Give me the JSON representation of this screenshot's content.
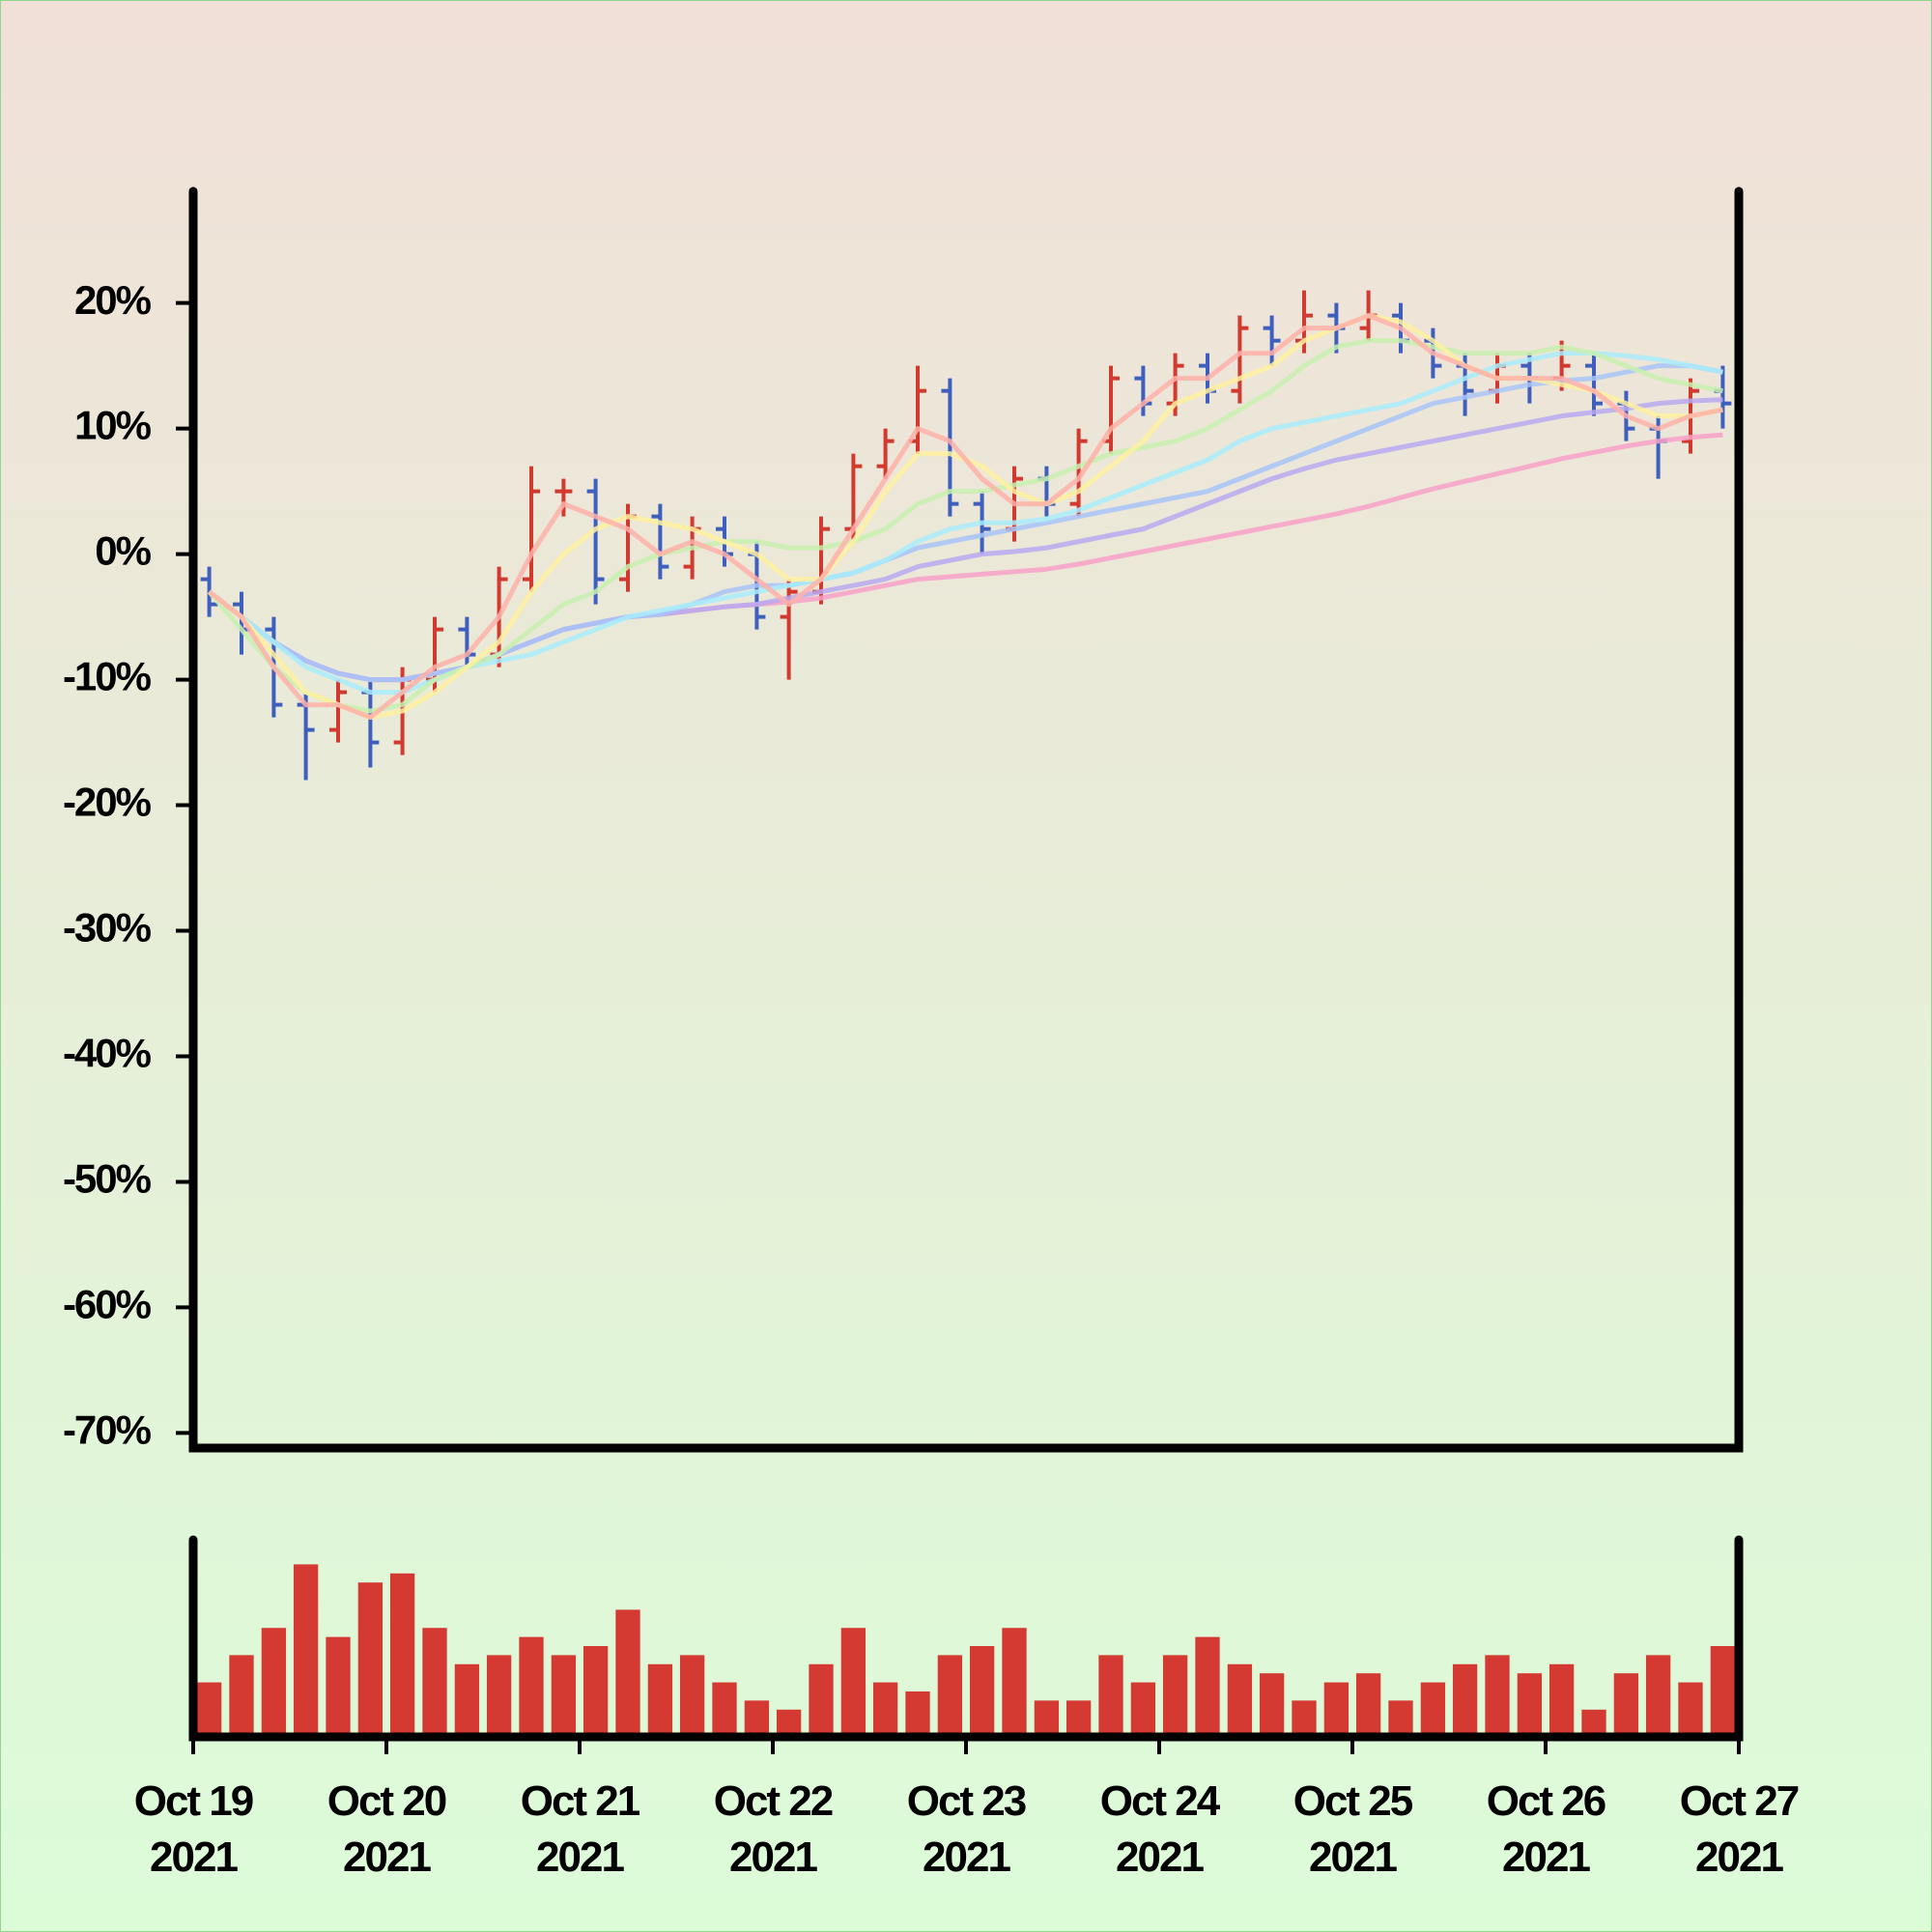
{
  "chart_data": {
    "type": "ohlc",
    "x": [
      0.083,
      0.25,
      0.417,
      0.583,
      0.75,
      0.917,
      1.083,
      1.25,
      1.417,
      1.583,
      1.75,
      1.917,
      2.083,
      2.25,
      2.417,
      2.583,
      2.75,
      2.917,
      3.083,
      3.25,
      3.417,
      3.583,
      3.75,
      3.917,
      4.083,
      4.25,
      4.417,
      4.583,
      4.75,
      4.917,
      5.083,
      5.25,
      5.417,
      5.583,
      5.75,
      5.917,
      6.083,
      6.25,
      6.417,
      6.583,
      6.75,
      6.917,
      7.083,
      7.25,
      7.417,
      7.583,
      7.75,
      7.917
    ],
    "open": [
      -2,
      -4,
      -6,
      -12,
      -14,
      -11,
      -15,
      -10,
      -6,
      -8,
      -2,
      5,
      5,
      -2,
      3,
      -1,
      2,
      0,
      -5,
      -3,
      2,
      7,
      9,
      13,
      4,
      2,
      6,
      4,
      9,
      14,
      12,
      15,
      13,
      18,
      17,
      19,
      18,
      19,
      17,
      15,
      13,
      15,
      14,
      15,
      12,
      10,
      9,
      13
    ],
    "high": [
      -1,
      -3,
      -5,
      -11,
      -10,
      -10,
      -9,
      -5,
      -5,
      -1,
      7,
      6,
      6,
      4,
      4,
      3,
      3,
      1,
      -2,
      3,
      8,
      10,
      15,
      14,
      5,
      7,
      7,
      10,
      15,
      15,
      16,
      16,
      19,
      19,
      21,
      20,
      21,
      20,
      18,
      16,
      16,
      16,
      17,
      16,
      13,
      11,
      14,
      15
    ],
    "low": [
      -5,
      -8,
      -13,
      -18,
      -15,
      -17,
      -16,
      -11,
      -9,
      -9,
      -3,
      3,
      -4,
      -3,
      -2,
      -2,
      -1,
      -6,
      -10,
      -4,
      1,
      6,
      8,
      3,
      0,
      1,
      3,
      3,
      8,
      11,
      11,
      12,
      12,
      15,
      16,
      16,
      17,
      16,
      14,
      11,
      12,
      12,
      13,
      11,
      9,
      6,
      8,
      10
    ],
    "close": [
      -4,
      -6,
      -12,
      -14,
      -11,
      -15,
      -10,
      -6,
      -8,
      -2,
      5,
      5,
      -2,
      3,
      -1,
      2,
      0,
      -5,
      -3,
      2,
      7,
      9,
      13,
      4,
      2,
      6,
      4,
      9,
      14,
      12,
      15,
      13,
      18,
      17,
      19,
      18,
      19,
      17,
      15,
      13,
      15,
      14,
      15,
      12,
      10,
      9,
      13,
      12
    ],
    "up_color": "#d23a30",
    "down_color": "#3f5fbf",
    "volume": [
      30,
      45,
      60,
      95,
      55,
      85,
      90,
      60,
      40,
      45,
      55,
      45,
      50,
      70,
      40,
      45,
      30,
      20,
      15,
      40,
      60,
      30,
      25,
      45,
      50,
      60,
      20,
      20,
      45,
      30,
      45,
      55,
      40,
      35,
      20,
      30,
      35,
      20,
      30,
      40,
      45,
      35,
      40,
      15,
      35,
      45,
      30,
      50
    ],
    "volume_color": "#d43a32",
    "volume_ylim": [
      0,
      100
    ],
    "moving_averages": [
      {
        "color": "#f8a0c8",
        "values": [
          -3,
          -5,
          -7,
          -8.5,
          -9.5,
          -10,
          -10,
          -9.5,
          -9,
          -8,
          -7,
          -6,
          -5.5,
          -5,
          -4.8,
          -4.5,
          -4.2,
          -4,
          -3.8,
          -3.5,
          -3,
          -2.5,
          -2,
          -1.8,
          -1.6,
          -1.4,
          -1.2,
          -0.8,
          -0.3,
          0.2,
          0.7,
          1.2,
          1.7,
          2.2,
          2.7,
          3.2,
          3.8,
          4.5,
          5.2,
          5.8,
          6.4,
          7,
          7.6,
          8.1,
          8.6,
          9,
          9.3,
          9.5
        ]
      },
      {
        "color": "#b8a8f0",
        "values": [
          -3,
          -5,
          -7,
          -8.5,
          -9.5,
          -10,
          -10,
          -9.5,
          -9,
          -8,
          -7,
          -6,
          -5.5,
          -5,
          -4.8,
          -4.5,
          -4.2,
          -4,
          -3.5,
          -3,
          -2.5,
          -2,
          -1,
          -0.5,
          0,
          0.2,
          0.5,
          1,
          1.5,
          2,
          3,
          4,
          5,
          6,
          6.8,
          7.5,
          8,
          8.5,
          9,
          9.5,
          10,
          10.5,
          11,
          11.3,
          11.6,
          12,
          12.2,
          12.3
        ]
      },
      {
        "color": "#a8c4f8",
        "values": [
          -3,
          -5,
          -7,
          -8.5,
          -9.5,
          -10,
          -10,
          -9.5,
          -9,
          -8,
          -7,
          -6,
          -5.5,
          -5,
          -4.8,
          -4,
          -3,
          -2.5,
          -2.5,
          -2,
          -1.5,
          -0.5,
          0.5,
          1,
          1.5,
          2,
          2.5,
          3,
          3.5,
          4,
          4.5,
          5,
          6,
          7,
          8,
          9,
          10,
          11,
          12,
          12.5,
          13,
          13.5,
          13.8,
          14,
          14.5,
          15,
          15,
          14.5
        ]
      },
      {
        "color": "#a8ecfc",
        "values": [
          -3,
          -5,
          -7,
          -9,
          -10,
          -11,
          -11,
          -10,
          -9,
          -8.5,
          -8,
          -7,
          -6,
          -5,
          -4.5,
          -4,
          -3.5,
          -3,
          -2.5,
          -2,
          -1.5,
          -0.5,
          1,
          2,
          2.5,
          2.5,
          2.8,
          3.5,
          4.5,
          5.5,
          6.5,
          7.5,
          9,
          10,
          10.5,
          11,
          11.5,
          12,
          13,
          14,
          15,
          15.5,
          16,
          16,
          15.8,
          15.5,
          15,
          14.5
        ]
      },
      {
        "color": "#c8f0b0",
        "values": [
          -3,
          -6,
          -9,
          -11,
          -12,
          -12.5,
          -12,
          -10,
          -9,
          -8,
          -6,
          -4,
          -3,
          -1,
          0,
          0.5,
          1,
          1,
          0.5,
          0.5,
          1,
          2,
          4,
          5,
          5,
          5.5,
          6,
          7,
          8,
          8.5,
          9,
          10,
          11.5,
          13,
          15,
          16.5,
          17,
          17,
          16.5,
          16,
          16,
          16,
          16.5,
          16,
          15,
          14,
          13.5,
          13
        ]
      },
      {
        "color": "#fff0a0",
        "values": [
          -3,
          -5,
          -8,
          -11,
          -12,
          -13,
          -12.5,
          -11,
          -9,
          -7,
          -3,
          0,
          2,
          3,
          2.5,
          2,
          1,
          0,
          -2,
          -2,
          1,
          5,
          8,
          8,
          7,
          5,
          4,
          5,
          7,
          9,
          12,
          13,
          14,
          15,
          17,
          18,
          19,
          18.5,
          17,
          15,
          14,
          14,
          13.5,
          13,
          12,
          11,
          11,
          11.5
        ]
      },
      {
        "color": "#ffb0a8",
        "values": [
          -3,
          -5,
          -9,
          -12,
          -12,
          -13,
          -11,
          -9,
          -8,
          -5,
          0,
          4,
          3,
          2,
          0,
          1,
          0,
          -2,
          -4,
          -2,
          2,
          6,
          10,
          9,
          6,
          4,
          4,
          6,
          10,
          12,
          14,
          14,
          16,
          16,
          18,
          18,
          19,
          18,
          16,
          15,
          14,
          14,
          14,
          13,
          11,
          10,
          11,
          11.5
        ]
      }
    ],
    "xlim": [
      0,
      8
    ],
    "xticks": [
      {
        "value": 0,
        "label": "Oct 19 2021"
      },
      {
        "value": 1,
        "label": "Oct 20 2021"
      },
      {
        "value": 2,
        "label": "Oct 21 2021"
      },
      {
        "value": 3,
        "label": "Oct 22 2021"
      },
      {
        "value": 4,
        "label": "Oct 23 2021"
      },
      {
        "value": 5,
        "label": "Oct 24 2021"
      },
      {
        "value": 6,
        "label": "Oct 25 2021"
      },
      {
        "value": 7,
        "label": "Oct 26 2021"
      },
      {
        "value": 8,
        "label": "Oct 27 2021"
      }
    ],
    "ylim": [
      -71.2,
      28.9
    ],
    "yticks": [
      {
        "value": 20,
        "label": "20%"
      },
      {
        "value": 10,
        "label": "10%"
      },
      {
        "value": 0,
        "label": "0%"
      },
      {
        "value": -10,
        "label": "-10%"
      },
      {
        "value": -20,
        "label": "-20%"
      },
      {
        "value": -30,
        "label": "-30%"
      },
      {
        "value": -40,
        "label": "-40%"
      },
      {
        "value": -50,
        "label": "-50%"
      },
      {
        "value": -60,
        "label": "-60%"
      },
      {
        "value": -70,
        "label": "-70%"
      }
    ]
  }
}
